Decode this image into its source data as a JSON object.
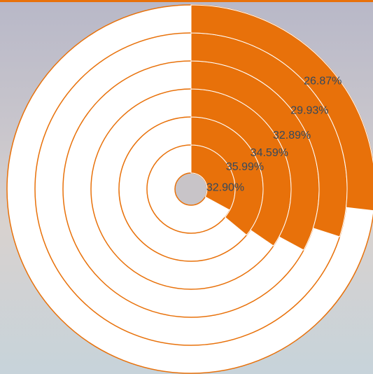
{
  "chart_data": {
    "type": "radial",
    "values": [
      32.9,
      35.99,
      34.59,
      32.89,
      29.93,
      26.87
    ],
    "value_labels": [
      "32.90%",
      "35.99%",
      "34.59%",
      "32.89%",
      "29.93%",
      "26.87%"
    ],
    "color": "#e8710a"
  }
}
